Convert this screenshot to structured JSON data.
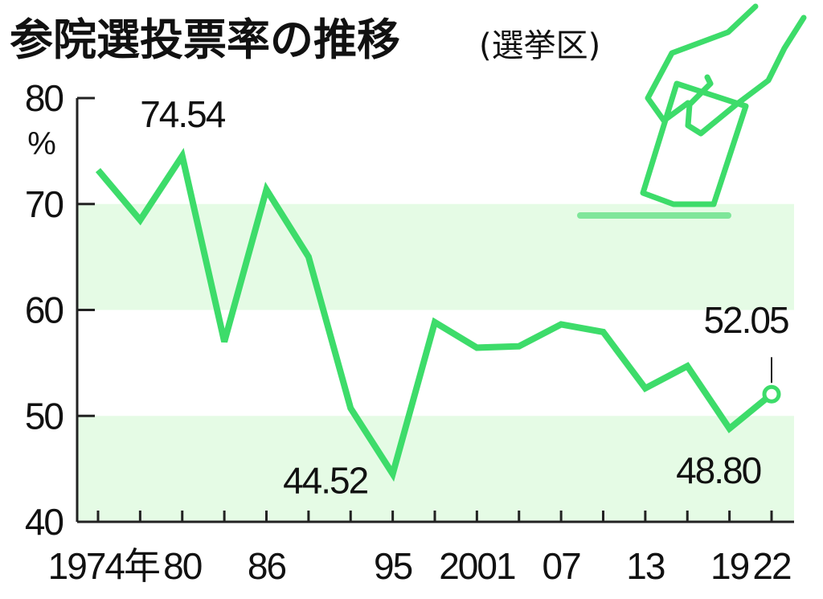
{
  "chart_data": {
    "type": "line",
    "title": "参院選投票率の推移",
    "subtitle": "(選挙区)",
    "y_unit": "%",
    "categories": [
      "1974年",
      null,
      "80",
      null,
      "86",
      null,
      null,
      "95",
      null,
      "2001",
      null,
      "07",
      null,
      "13",
      null,
      "19",
      "22"
    ],
    "values": [
      73.2,
      68.49,
      74.54,
      57.0,
      71.36,
      65.02,
      50.72,
      44.52,
      58.84,
      56.44,
      56.57,
      58.64,
      57.92,
      52.61,
      54.7,
      48.8,
      52.05
    ],
    "value_labels": [
      null,
      null,
      "74.54",
      null,
      null,
      null,
      null,
      "44.52",
      null,
      null,
      null,
      null,
      null,
      null,
      null,
      "48.80",
      "52.05"
    ],
    "color": "#3ddc6a",
    "ylim": [
      40,
      80
    ],
    "yticks": [
      40,
      50,
      60,
      70,
      80
    ],
    "bands": [
      [
        40,
        50
      ],
      [
        60,
        70
      ]
    ],
    "band_color": "#e5fbe5"
  }
}
